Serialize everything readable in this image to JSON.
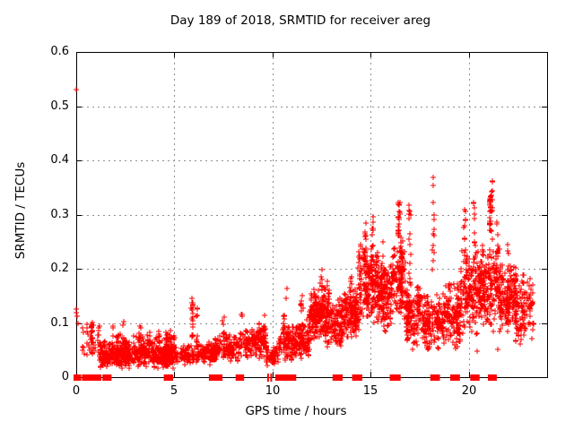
{
  "chart_data": {
    "type": "scatter",
    "title": "Day 189 of 2018, SRMTID for receiver areg",
    "xlabel": "GPS time / hours",
    "ylabel": "SRMTID / TECUs",
    "xlim": [
      0,
      24
    ],
    "ylim": [
      0,
      0.6
    ],
    "xticks": [
      {
        "v": 0,
        "label": "0"
      },
      {
        "v": 5,
        "label": "5"
      },
      {
        "v": 10,
        "label": "10"
      },
      {
        "v": 15,
        "label": "15"
      },
      {
        "v": 20,
        "label": "20"
      }
    ],
    "yticks": [
      {
        "v": 0,
        "label": "0"
      },
      {
        "v": 0.1,
        "label": "0.1"
      },
      {
        "v": 0.2,
        "label": "0.2"
      },
      {
        "v": 0.3,
        "label": "0.3"
      },
      {
        "v": 0.4,
        "label": "0.4"
      },
      {
        "v": 0.5,
        "label": "0.5"
      },
      {
        "v": 0.6,
        "label": "0.6"
      }
    ],
    "grid": true,
    "legend": null,
    "marker": {
      "shape": "plus",
      "color": "#ff0000",
      "size": 7
    },
    "colors": {
      "marker": "#ff0000",
      "axis": "#000000",
      "grid": "#909090",
      "background": "#ffffff"
    },
    "seed": 1318,
    "points_explicit": [
      [
        0.02,
        0.531
      ],
      [
        0.0,
        0.126
      ],
      [
        0.0,
        0.119
      ],
      [
        0.05,
        0.113
      ],
      [
        0.07,
        0.1
      ],
      [
        10.68,
        0.146
      ],
      [
        10.72,
        0.163
      ],
      [
        20.42,
        0.048
      ],
      [
        21.5,
        0.051
      ],
      [
        23.3,
        0.1
      ],
      [
        23.25,
        0.155
      ]
    ],
    "zero_segments": [
      [
        0.0,
        0.12
      ],
      [
        0.43,
        0.6
      ],
      [
        0.67,
        1.14
      ],
      [
        1.47,
        1.66
      ],
      [
        4.6,
        4.8
      ],
      [
        6.9,
        7.32
      ],
      [
        8.26,
        8.42
      ],
      [
        9.78,
        9.78
      ],
      [
        9.94,
        9.94
      ],
      [
        10.28,
        10.68
      ],
      [
        10.9,
        11.08
      ],
      [
        13.2,
        13.44
      ],
      [
        14.2,
        14.44
      ],
      [
        16.12,
        16.4
      ],
      [
        18.18,
        18.4
      ],
      [
        19.2,
        19.42
      ],
      [
        20.22,
        20.42
      ],
      [
        21.12,
        21.3
      ]
    ],
    "clusters": [
      {
        "kind": "band",
        "x0": 0.28,
        "x1": 1.2,
        "ymin": 0.035,
        "ymax": 0.105,
        "n": 42
      },
      {
        "kind": "band",
        "x0": 1.2,
        "x1": 5.0,
        "ymin": 0.015,
        "ymax": 0.07,
        "n": 640
      },
      {
        "kind": "band",
        "x0": 1.5,
        "x1": 5.0,
        "ymin": 0.055,
        "ymax": 0.088,
        "n": 55
      },
      {
        "kind": "band",
        "x0": 5.0,
        "x1": 6.0,
        "ymin": 0.02,
        "ymax": 0.06,
        "n": 90
      },
      {
        "kind": "band",
        "x0": 6.0,
        "x1": 6.9,
        "ymin": 0.02,
        "ymax": 0.065,
        "n": 85
      },
      {
        "kind": "band",
        "x0": 6.9,
        "x1": 8.3,
        "ymin": 0.025,
        "ymax": 0.08,
        "n": 150
      },
      {
        "kind": "band",
        "x0": 8.3,
        "x1": 9.7,
        "ymin": 0.03,
        "ymax": 0.095,
        "n": 160
      },
      {
        "kind": "band",
        "x0": 9.7,
        "x1": 10.3,
        "ymin": 0.02,
        "ymax": 0.06,
        "n": 60
      },
      {
        "kind": "band",
        "x0": 10.3,
        "x1": 11.2,
        "ymin": 0.03,
        "ymax": 0.1,
        "n": 110
      },
      {
        "kind": "band",
        "x0": 11.2,
        "x1": 11.9,
        "ymin": 0.03,
        "ymax": 0.11,
        "n": 110
      },
      {
        "kind": "band",
        "x0": 11.9,
        "x1": 12.7,
        "ymin": 0.06,
        "ymax": 0.17,
        "n": 160
      },
      {
        "kind": "band",
        "x0": 12.7,
        "x1": 13.6,
        "ymin": 0.05,
        "ymax": 0.15,
        "n": 170
      },
      {
        "kind": "band",
        "x0": 13.6,
        "x1": 14.4,
        "ymin": 0.07,
        "ymax": 0.17,
        "n": 170
      },
      {
        "kind": "band",
        "x0": 14.4,
        "x1": 15.4,
        "ymin": 0.1,
        "ymax": 0.26,
        "n": 210
      },
      {
        "kind": "band",
        "x0": 15.4,
        "x1": 16.1,
        "ymin": 0.08,
        "ymax": 0.22,
        "n": 140
      },
      {
        "kind": "band",
        "x0": 16.1,
        "x1": 16.75,
        "ymin": 0.1,
        "ymax": 0.26,
        "n": 120
      },
      {
        "kind": "band",
        "x0": 16.75,
        "x1": 17.6,
        "ymin": 0.05,
        "ymax": 0.18,
        "n": 150
      },
      {
        "kind": "band",
        "x0": 17.6,
        "x1": 18.65,
        "ymin": 0.04,
        "ymax": 0.16,
        "n": 150
      },
      {
        "kind": "band",
        "x0": 18.65,
        "x1": 19.6,
        "ymin": 0.05,
        "ymax": 0.18,
        "n": 150
      },
      {
        "kind": "band",
        "x0": 19.6,
        "x1": 20.6,
        "ymin": 0.07,
        "ymax": 0.24,
        "n": 170
      },
      {
        "kind": "band",
        "x0": 20.6,
        "x1": 21.6,
        "ymin": 0.08,
        "ymax": 0.26,
        "n": 180
      },
      {
        "kind": "band",
        "x0": 21.6,
        "x1": 22.4,
        "ymin": 0.08,
        "ymax": 0.22,
        "n": 150
      },
      {
        "kind": "band",
        "x0": 22.4,
        "x1": 23.3,
        "ymin": 0.06,
        "ymax": 0.19,
        "n": 110
      },
      {
        "kind": "column",
        "x": 0.8,
        "ymin": 0.04,
        "ymax": 0.107,
        "n": 12
      },
      {
        "kind": "column",
        "x": 1.85,
        "ymin": 0.05,
        "ymax": 0.095,
        "n": 8
      },
      {
        "kind": "column",
        "x": 2.4,
        "ymin": 0.05,
        "ymax": 0.105,
        "n": 8
      },
      {
        "kind": "column",
        "x": 3.3,
        "ymin": 0.05,
        "ymax": 0.1,
        "n": 7
      },
      {
        "kind": "column",
        "x": 4.6,
        "ymin": 0.05,
        "ymax": 0.084,
        "n": 6
      },
      {
        "kind": "column",
        "x": 5.0,
        "ymin": 0.05,
        "ymax": 0.104,
        "n": 8
      },
      {
        "kind": "column",
        "x": 5.92,
        "ymin": 0.07,
        "ymax": 0.148,
        "n": 18
      },
      {
        "kind": "column",
        "x": 6.15,
        "ymin": 0.05,
        "ymax": 0.135,
        "n": 12
      },
      {
        "kind": "column",
        "x": 7.5,
        "ymin": 0.06,
        "ymax": 0.115,
        "n": 8
      },
      {
        "kind": "column",
        "x": 8.45,
        "ymin": 0.06,
        "ymax": 0.125,
        "n": 8
      },
      {
        "kind": "column",
        "x": 9.35,
        "ymin": 0.06,
        "ymax": 0.112,
        "n": 7
      },
      {
        "kind": "column",
        "x": 9.6,
        "ymin": 0.06,
        "ymax": 0.12,
        "n": 7
      },
      {
        "kind": "column",
        "x": 10.6,
        "ymin": 0.07,
        "ymax": 0.115,
        "n": 8
      },
      {
        "kind": "column",
        "x": 11.5,
        "ymin": 0.06,
        "ymax": 0.17,
        "n": 12
      },
      {
        "kind": "column",
        "x": 12.5,
        "ymin": 0.1,
        "ymax": 0.215,
        "n": 18
      },
      {
        "kind": "column",
        "x": 12.85,
        "ymin": 0.08,
        "ymax": 0.18,
        "n": 10
      },
      {
        "kind": "column",
        "x": 14.0,
        "ymin": 0.1,
        "ymax": 0.19,
        "n": 10
      },
      {
        "kind": "column",
        "x": 14.75,
        "ymin": 0.12,
        "ymax": 0.3,
        "n": 16
      },
      {
        "kind": "column",
        "x": 15.1,
        "ymin": 0.14,
        "ymax": 0.3,
        "n": 22
      },
      {
        "kind": "column",
        "x": 15.62,
        "ymin": 0.1,
        "ymax": 0.25,
        "n": 12
      },
      {
        "kind": "column",
        "x": 16.45,
        "ymin": 0.26,
        "ymax": 0.325,
        "n": 26
      },
      {
        "kind": "column",
        "x": 16.6,
        "ymin": 0.15,
        "ymax": 0.28,
        "n": 12
      },
      {
        "kind": "column",
        "x": 17.0,
        "ymin": 0.17,
        "ymax": 0.32,
        "n": 16
      },
      {
        "kind": "column",
        "x": 18.2,
        "ymin": 0.19,
        "ymax": 0.375,
        "n": 14
      },
      {
        "kind": "column",
        "x": 19.0,
        "ymin": 0.08,
        "ymax": 0.22,
        "n": 10
      },
      {
        "kind": "column",
        "x": 19.8,
        "ymin": 0.12,
        "ymax": 0.35,
        "n": 16
      },
      {
        "kind": "column",
        "x": 20.3,
        "ymin": 0.2,
        "ymax": 0.33,
        "n": 14
      },
      {
        "kind": "column",
        "x": 21.1,
        "ymin": 0.27,
        "ymax": 0.335,
        "n": 28
      },
      {
        "kind": "column",
        "x": 21.2,
        "ymin": 0.3,
        "ymax": 0.375,
        "n": 10
      },
      {
        "kind": "column",
        "x": 21.45,
        "ymin": 0.15,
        "ymax": 0.3,
        "n": 12
      },
      {
        "kind": "column",
        "x": 22.0,
        "ymin": 0.1,
        "ymax": 0.25,
        "n": 12
      },
      {
        "kind": "column",
        "x": 22.85,
        "ymin": 0.08,
        "ymax": 0.2,
        "n": 10
      }
    ]
  }
}
